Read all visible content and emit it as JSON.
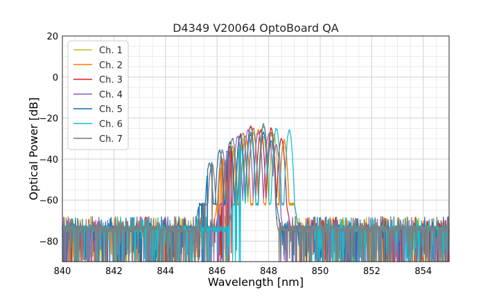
{
  "chart_data": {
    "type": "line",
    "title": "D4349 V20064 OptoBoard QA",
    "xlabel": "Wavelength [nm]",
    "ylabel": "Optical Power [dB]",
    "xlim": [
      840,
      855
    ],
    "ylim": [
      -90,
      20
    ],
    "xticks": [
      840,
      842,
      844,
      846,
      848,
      850,
      852,
      854
    ],
    "yticks": [
      -80,
      -60,
      -40,
      -20,
      0,
      20
    ],
    "grid": true,
    "minor_grid": true,
    "legend": {
      "placement": "top-left"
    },
    "noise_floor_db": -74,
    "series": [
      {
        "name": "Ch. 1",
        "color": "#bcbd22",
        "band": [
          846.4,
          849.0
        ],
        "peaks": [
          [
            846.6,
            -36
          ],
          [
            847.0,
            -30
          ],
          [
            847.4,
            -27
          ],
          [
            847.8,
            -29
          ],
          [
            848.2,
            -28
          ],
          [
            848.6,
            -32
          ]
        ]
      },
      {
        "name": "Ch. 2",
        "color": "#ff7f0e",
        "band": [
          846.0,
          849.0
        ],
        "peaks": [
          [
            846.2,
            -40
          ],
          [
            846.6,
            -34
          ],
          [
            847.1,
            -29
          ],
          [
            847.6,
            -26
          ],
          [
            848.1,
            -28
          ],
          [
            848.6,
            -31
          ]
        ]
      },
      {
        "name": "Ch. 3",
        "color": "#d62728",
        "band": [
          846.2,
          848.7
        ],
        "peaks": [
          [
            846.5,
            -34
          ],
          [
            846.9,
            -28
          ],
          [
            847.3,
            -24
          ],
          [
            847.7,
            -26
          ],
          [
            848.1,
            -25
          ],
          [
            848.5,
            -30
          ]
        ]
      },
      {
        "name": "Ch. 4",
        "color": "#9467bd",
        "band": [
          846.1,
          848.4
        ],
        "peaks": [
          [
            846.4,
            -36
          ],
          [
            846.8,
            -29
          ],
          [
            847.2,
            -26
          ],
          [
            847.6,
            -27
          ],
          [
            848.0,
            -28
          ],
          [
            848.3,
            -33
          ]
        ]
      },
      {
        "name": "Ch. 5",
        "color": "#1f77b4",
        "band": [
          845.3,
          848.3
        ],
        "peaks": [
          [
            845.7,
            -42
          ],
          [
            846.1,
            -36
          ],
          [
            846.5,
            -32
          ],
          [
            846.9,
            -29
          ],
          [
            847.3,
            -28
          ],
          [
            847.8,
            -27
          ],
          [
            848.1,
            -31
          ]
        ]
      },
      {
        "name": "Ch. 6",
        "color": "#17becf",
        "band": [
          846.6,
          849.0
        ],
        "peaks": [
          [
            846.9,
            -33
          ],
          [
            847.3,
            -27
          ],
          [
            847.8,
            -24
          ],
          [
            848.3,
            -25
          ],
          [
            848.8,
            -26
          ]
        ]
      },
      {
        "name": "Ch. 7",
        "color": "#7f7f7f",
        "band": [
          845.5,
          848.2
        ],
        "peaks": [
          [
            845.8,
            -42
          ],
          [
            846.2,
            -36
          ],
          [
            846.6,
            -30
          ],
          [
            847.0,
            -27
          ],
          [
            847.4,
            -25
          ],
          [
            847.8,
            -23
          ],
          [
            848.1,
            -27
          ]
        ]
      }
    ]
  }
}
